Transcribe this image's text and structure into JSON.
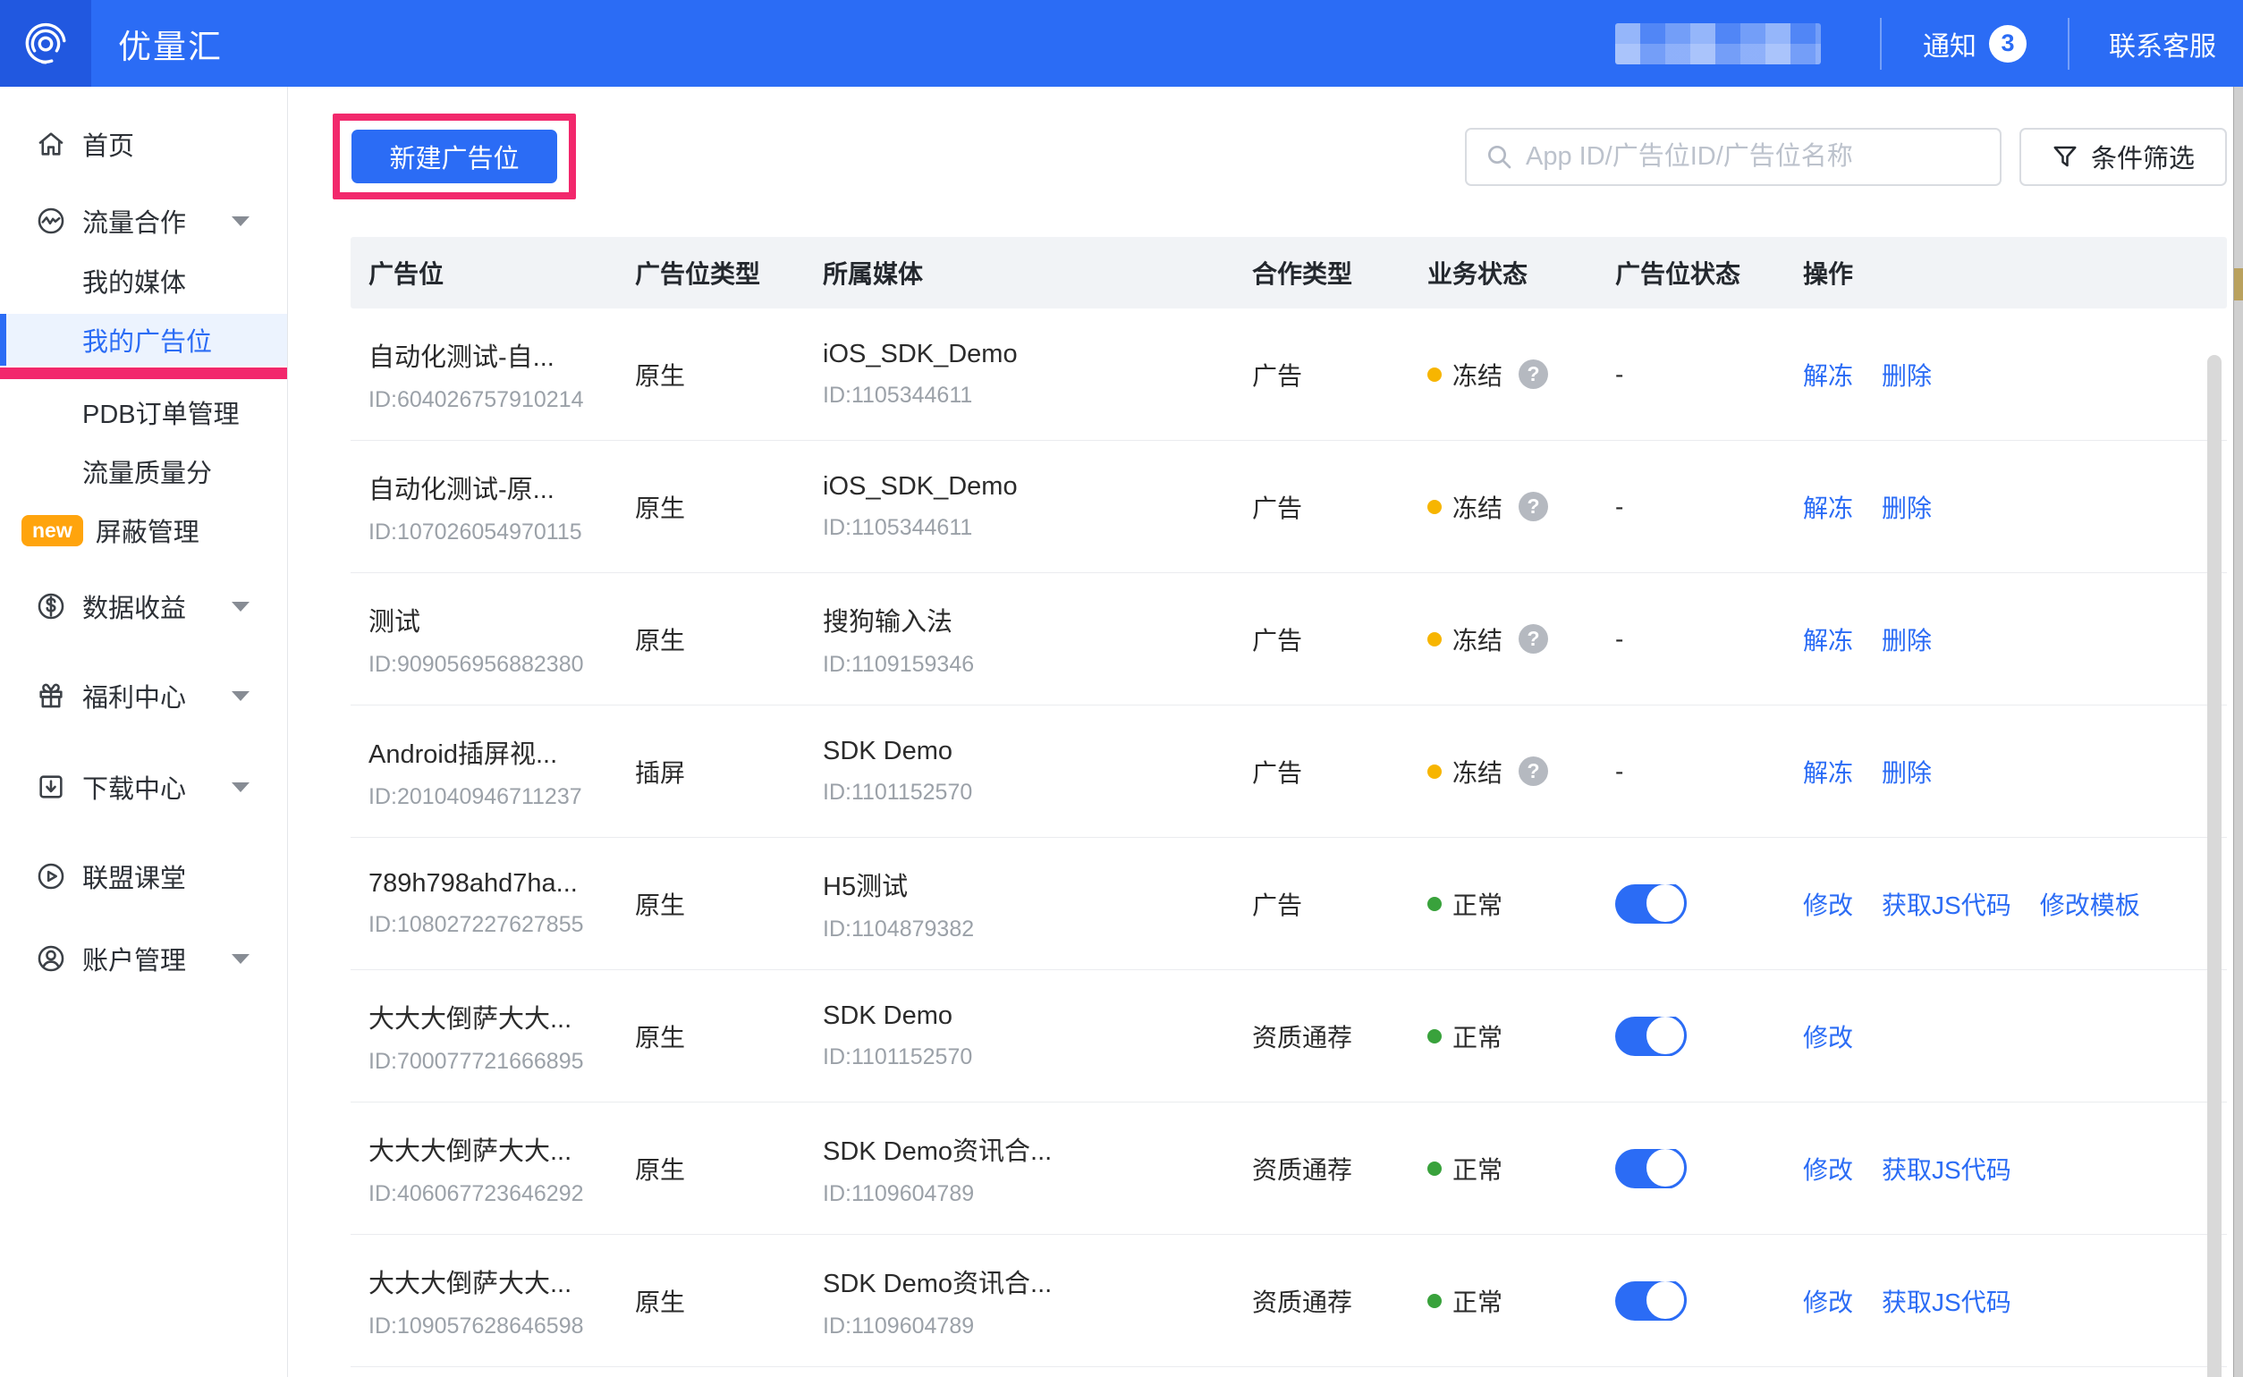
{
  "colors": {
    "accent": "#2B6CF5",
    "annotation_pink": "#F2286C",
    "frozen_dot": "#F7B500",
    "normal_dot": "#39A23C",
    "badge_orange": "#FFA40D"
  },
  "header": {
    "brand": "优量汇",
    "notice_label": "通知",
    "notice_count": "3",
    "support_label": "联系客服"
  },
  "sidebar": {
    "items": [
      {
        "label": "首页",
        "icon": "home-icon",
        "level": "top"
      },
      {
        "label": "流量合作",
        "icon": "traffic-icon",
        "level": "top",
        "chevron": true
      },
      {
        "label": "我的媒体",
        "level": "sub"
      },
      {
        "label": "我的广告位",
        "level": "sub",
        "selected": true,
        "underline": true
      },
      {
        "label": "PDB订单管理",
        "level": "sub"
      },
      {
        "label": "流量质量分",
        "level": "sub"
      },
      {
        "label": "屏蔽管理",
        "level": "sub",
        "badge": "new"
      },
      {
        "label": "数据收益",
        "icon": "revenue-icon",
        "level": "top",
        "chevron": true
      },
      {
        "label": "福利中心",
        "icon": "gift-icon",
        "level": "top",
        "chevron": true,
        "gap": 40
      },
      {
        "label": "下载中心",
        "icon": "download-icon",
        "level": "top",
        "chevron": true,
        "gap": 42
      },
      {
        "label": "联盟课堂",
        "icon": "play-icon",
        "level": "top",
        "gap": 40
      },
      {
        "label": "账户管理",
        "icon": "account-icon",
        "level": "top",
        "chevron": true,
        "gap": 32
      }
    ]
  },
  "toolbar": {
    "new_button": "新建广告位",
    "search_placeholder": "App ID/广告位ID/广告位名称",
    "filter_label": "条件筛选"
  },
  "table": {
    "columns": [
      "广告位",
      "广告位类型",
      "所属媒体",
      "合作类型",
      "业务状态",
      "广告位状态",
      "操作"
    ],
    "rows": [
      {
        "name": "自动化测试-自...",
        "id": "ID:604026757910214",
        "type": "原生",
        "media": "iOS_SDK_Demo",
        "media_id": "ID:1105344611",
        "coop": "广告",
        "status": {
          "state": "frozen",
          "label": "冻结",
          "help": true
        },
        "slot": "-",
        "actions": [
          "解冻",
          "删除"
        ]
      },
      {
        "name": "自动化测试-原...",
        "id": "ID:107026054970115",
        "type": "原生",
        "media": "iOS_SDK_Demo",
        "media_id": "ID:1105344611",
        "coop": "广告",
        "status": {
          "state": "frozen",
          "label": "冻结",
          "help": true
        },
        "slot": "-",
        "actions": [
          "解冻",
          "删除"
        ]
      },
      {
        "name": "测试",
        "id": "ID:909056956882380",
        "type": "原生",
        "media": "搜狗输入法",
        "media_id": "ID:1109159346",
        "coop": "广告",
        "status": {
          "state": "frozen",
          "label": "冻结",
          "help": true
        },
        "slot": "-",
        "actions": [
          "解冻",
          "删除"
        ]
      },
      {
        "name": "Android插屏视...",
        "id": "ID:201040946711237",
        "type": "插屏",
        "media": "SDK Demo",
        "media_id": "ID:1101152570",
        "coop": "广告",
        "status": {
          "state": "frozen",
          "label": "冻结",
          "help": true
        },
        "slot": "-",
        "actions": [
          "解冻",
          "删除"
        ]
      },
      {
        "name": "789h798ahd7ha...",
        "id": "ID:108027227627855",
        "type": "原生",
        "media": "H5测试",
        "media_id": "ID:1104879382",
        "coop": "广告",
        "status": {
          "state": "normal",
          "label": "正常",
          "help": false
        },
        "slot": "on",
        "actions": [
          "修改",
          "获取JS代码",
          "修改模板"
        ]
      },
      {
        "name": "大大大倒萨大大...",
        "id": "ID:700077721666895",
        "type": "原生",
        "media": "SDK Demo",
        "media_id": "ID:1101152570",
        "coop": "资质通荐",
        "status": {
          "state": "normal",
          "label": "正常",
          "help": false
        },
        "slot": "on",
        "actions": [
          "修改"
        ]
      },
      {
        "name": "大大大倒萨大大...",
        "id": "ID:406067723646292",
        "type": "原生",
        "media": "SDK Demo资讯合...",
        "media_id": "ID:1109604789",
        "coop": "资质通荐",
        "status": {
          "state": "normal",
          "label": "正常",
          "help": false
        },
        "slot": "on",
        "actions": [
          "修改",
          "获取JS代码"
        ]
      },
      {
        "name": "大大大倒萨大大...",
        "id": "ID:109057628646598",
        "type": "原生",
        "media": "SDK Demo资讯合...",
        "media_id": "ID:1109604789",
        "coop": "资质通荐",
        "status": {
          "state": "normal",
          "label": "正常",
          "help": false
        },
        "slot": "on",
        "actions": [
          "修改",
          "获取JS代码"
        ]
      }
    ]
  }
}
